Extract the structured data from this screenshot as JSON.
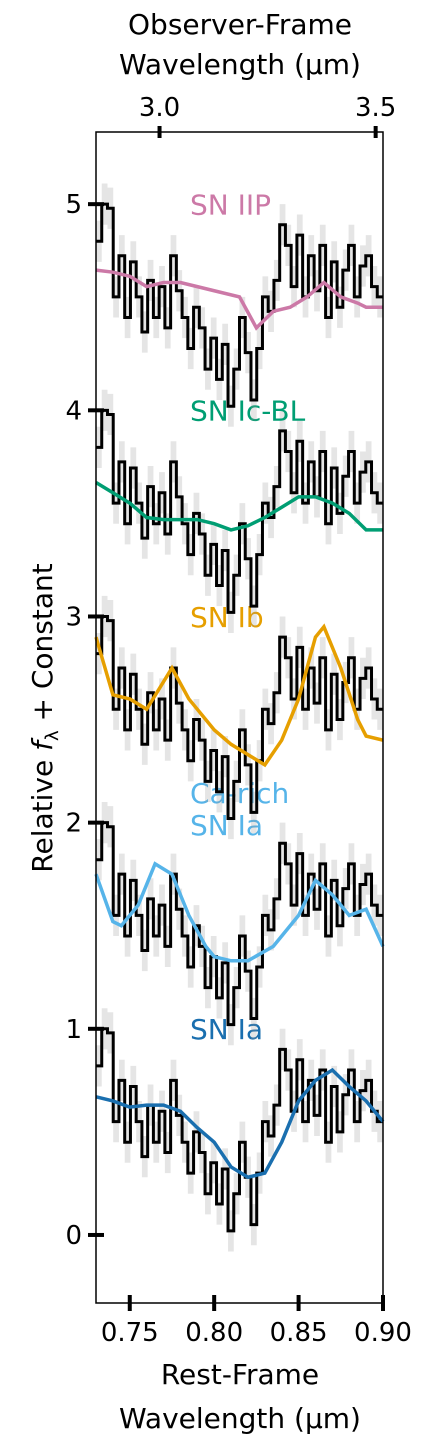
{
  "chart_data": {
    "type": "step",
    "xlabel": [
      "Rest-Frame",
      "Wavelength (μm)"
    ],
    "x2label": [
      "Observer-Frame",
      "Wavelength (μm)"
    ],
    "ylabel": [
      "Relative ",
      "f",
      "λ",
      " + Constant"
    ],
    "xlim": [
      0.73,
      0.9
    ],
    "xticks": [
      0.75,
      {
        "value": 0.8,
        "label": "0.80"
      },
      0.85,
      {
        "value": 0.9,
        "label": "0.90"
      }
    ],
    "x2lim": [
      2.853,
      3.517
    ],
    "x2ticks": [
      {
        "value": 3.0,
        "label": "3.0"
      },
      {
        "value": 3.5,
        "label": "3.5"
      }
    ],
    "ylim": [
      -0.33,
      5.35
    ],
    "yticks": [
      0,
      1,
      2,
      3,
      4,
      5
    ],
    "spectrum": {
      "color": "#000000",
      "error": 0.1,
      "x": [
        0.7317,
        0.7351,
        0.7385,
        0.7419,
        0.7453,
        0.7487,
        0.7521,
        0.7555,
        0.7589,
        0.7623,
        0.7657,
        0.7691,
        0.7725,
        0.7759,
        0.7793,
        0.7827,
        0.7861,
        0.7895,
        0.7929,
        0.7963,
        0.7997,
        0.8031,
        0.8065,
        0.8099,
        0.8133,
        0.8167,
        0.8201,
        0.8235,
        0.8269,
        0.8303,
        0.8337,
        0.8371,
        0.8405,
        0.8439,
        0.8473,
        0.8507,
        0.8541,
        0.8575,
        0.8609,
        0.8643,
        0.8677,
        0.8711,
        0.8745,
        0.8779,
        0.8813,
        0.8847,
        0.8881,
        0.8915,
        0.8949,
        0.8983
      ],
      "values": [
        0.82,
        1.0,
        0.98,
        0.55,
        0.75,
        0.45,
        0.72,
        0.55,
        0.38,
        0.63,
        0.45,
        0.6,
        0.4,
        0.75,
        0.58,
        0.45,
        0.3,
        0.5,
        0.4,
        0.2,
        0.35,
        0.15,
        0.32,
        0.02,
        0.2,
        0.45,
        0.28,
        0.05,
        0.3,
        0.55,
        0.48,
        0.63,
        0.9,
        0.8,
        0.6,
        0.85,
        0.55,
        0.75,
        0.58,
        0.8,
        0.45,
        0.72,
        0.5,
        0.68,
        0.8,
        0.55,
        0.7,
        0.75,
        0.6,
        0.55
      ]
    },
    "series": [
      {
        "name": [
          "SN Ia"
        ],
        "color": "#1a6faf",
        "offset": 0,
        "x": [
          0.73,
          0.74,
          0.75,
          0.76,
          0.77,
          0.78,
          0.79,
          0.8,
          0.81,
          0.82,
          0.83,
          0.84,
          0.85,
          0.86,
          0.87,
          0.88,
          0.89,
          0.9
        ],
        "values": [
          0.67,
          0.65,
          0.62,
          0.63,
          0.63,
          0.6,
          0.52,
          0.45,
          0.33,
          0.28,
          0.3,
          0.45,
          0.65,
          0.75,
          0.8,
          0.72,
          0.65,
          0.55
        ]
      },
      {
        "name": [
          "Ca-rich",
          "SN Ia"
        ],
        "color": "#56b4e9",
        "offset": 1,
        "x": [
          0.73,
          0.74,
          0.745,
          0.755,
          0.765,
          0.775,
          0.785,
          0.795,
          0.8,
          0.81,
          0.82,
          0.835,
          0.85,
          0.86,
          0.87,
          0.88,
          0.89,
          0.9
        ],
        "values": [
          1.75,
          1.52,
          1.5,
          1.6,
          1.8,
          1.75,
          1.55,
          1.4,
          1.35,
          1.33,
          1.33,
          1.4,
          1.55,
          1.72,
          1.65,
          1.55,
          1.58,
          1.4
        ]
      },
      {
        "name": [
          "SN Ib"
        ],
        "color": "#e69f00",
        "offset": 2,
        "x": [
          0.73,
          0.74,
          0.75,
          0.76,
          0.775,
          0.785,
          0.8,
          0.81,
          0.82,
          0.83,
          0.84,
          0.85,
          0.86,
          0.865,
          0.875,
          0.885,
          0.89,
          0.9
        ],
        "values": [
          2.9,
          2.62,
          2.6,
          2.55,
          2.75,
          2.6,
          2.45,
          2.38,
          2.33,
          2.28,
          2.4,
          2.6,
          2.9,
          2.95,
          2.75,
          2.5,
          2.42,
          2.4
        ]
      },
      {
        "name": [
          "SN Ic-BL"
        ],
        "color": "#009e73",
        "offset": 3,
        "x": [
          0.73,
          0.74,
          0.75,
          0.76,
          0.77,
          0.78,
          0.79,
          0.8,
          0.81,
          0.82,
          0.83,
          0.84,
          0.85,
          0.86,
          0.87,
          0.88,
          0.89,
          0.9
        ],
        "values": [
          3.65,
          3.6,
          3.55,
          3.48,
          3.47,
          3.47,
          3.47,
          3.45,
          3.42,
          3.44,
          3.48,
          3.53,
          3.58,
          3.58,
          3.55,
          3.5,
          3.42,
          3.42
        ]
      },
      {
        "name": [
          "SN IIP"
        ],
        "color": "#cc79a7",
        "offset": 4,
        "x": [
          0.73,
          0.74,
          0.75,
          0.76,
          0.77,
          0.78,
          0.79,
          0.8,
          0.815,
          0.825,
          0.835,
          0.845,
          0.855,
          0.865,
          0.875,
          0.885,
          0.89,
          0.9
        ],
        "values": [
          4.68,
          4.67,
          4.65,
          4.6,
          4.62,
          4.62,
          4.6,
          4.58,
          4.55,
          4.4,
          4.48,
          4.5,
          4.55,
          4.62,
          4.55,
          4.52,
          4.5,
          4.5
        ]
      }
    ]
  }
}
